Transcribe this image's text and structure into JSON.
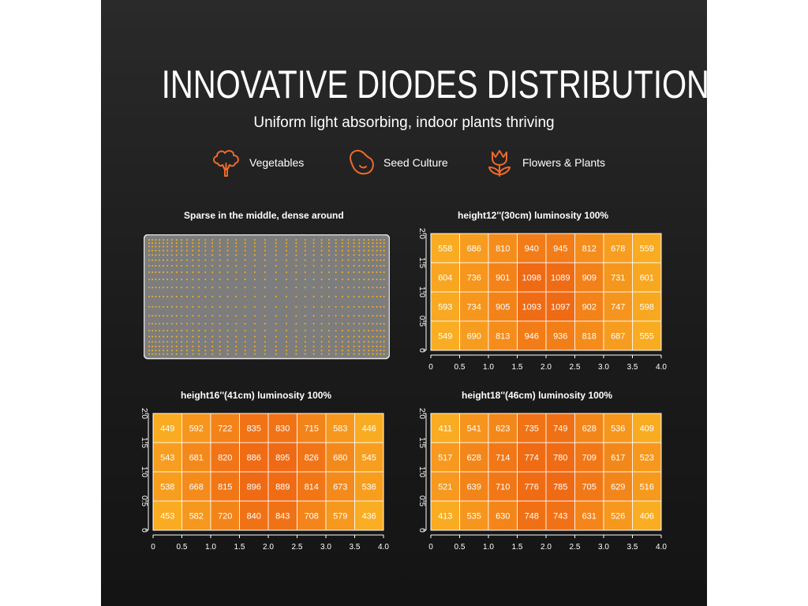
{
  "title": "INNOVATIVE DIODES DISTRIBUTION",
  "subtitle": "Uniform light absorbing, indoor plants thriving",
  "features": [
    {
      "icon": "broccoli-icon",
      "label": "Vegetables"
    },
    {
      "icon": "bean-icon",
      "label": "Seed Culture"
    },
    {
      "icon": "tulip-icon",
      "label": "Flowers & Plants"
    }
  ],
  "diode_panel": {
    "title": "Sparse in the middle, dense around"
  },
  "colors": {
    "accent": "#ee6a2c",
    "low": "#f9ad22",
    "high": "#ef6a14",
    "diode": "#f6b21f",
    "panel": "#7d7d7d"
  },
  "chart_data": [
    {
      "type": "heatmap",
      "title": "height12''(30cm)   luminosity 100%",
      "x_ticks": [
        "0",
        "0.5",
        "1.0",
        "1.5",
        "2.0",
        "2.5",
        "3.0",
        "3.5",
        "4.0"
      ],
      "y_ticks": [
        "0",
        "0.5",
        "1.0",
        "1.5",
        "2.0"
      ],
      "xlim": [
        0,
        4
      ],
      "ylim": [
        0,
        2
      ],
      "rows": [
        [
          558,
          686,
          810,
          940,
          945,
          812,
          678,
          559
        ],
        [
          604,
          736,
          901,
          1098,
          1089,
          909,
          731,
          601
        ],
        [
          593,
          734,
          905,
          1093,
          1097,
          902,
          747,
          598
        ],
        [
          549,
          690,
          813,
          946,
          936,
          818,
          687,
          555
        ]
      ]
    },
    {
      "type": "heatmap",
      "title": "height16''(41cm)   luminosity 100%",
      "x_ticks": [
        "0",
        "0.5",
        "1.0",
        "1.5",
        "2.0",
        "2.5",
        "3.0",
        "3.5",
        "4.0"
      ],
      "y_ticks": [
        "0",
        "0.5",
        "1.0",
        "1.5",
        "2.0"
      ],
      "xlim": [
        0,
        4
      ],
      "ylim": [
        0,
        2
      ],
      "rows": [
        [
          449,
          592,
          722,
          835,
          830,
          715,
          583,
          446
        ],
        [
          543,
          681,
          820,
          886,
          895,
          826,
          680,
          545
        ],
        [
          538,
          668,
          815,
          896,
          889,
          814,
          673,
          536
        ],
        [
          453,
          582,
          720,
          840,
          843,
          708,
          579,
          436
        ]
      ]
    },
    {
      "type": "heatmap",
      "title": "height18''(46cm)   luminosity 100%",
      "x_ticks": [
        "0",
        "0.5",
        "1.0",
        "1.5",
        "2.0",
        "2.5",
        "3.0",
        "3.5",
        "4.0"
      ],
      "y_ticks": [
        "0",
        "0.5",
        "1.0",
        "1.5",
        "2.0"
      ],
      "xlim": [
        0,
        4
      ],
      "ylim": [
        0,
        2
      ],
      "rows": [
        [
          411,
          541,
          623,
          735,
          749,
          628,
          536,
          409
        ],
        [
          517,
          628,
          714,
          774,
          780,
          709,
          617,
          523
        ],
        [
          521,
          639,
          710,
          776,
          785,
          705,
          629,
          516
        ],
        [
          413,
          535,
          630,
          748,
          743,
          631,
          526,
          406
        ]
      ]
    }
  ]
}
